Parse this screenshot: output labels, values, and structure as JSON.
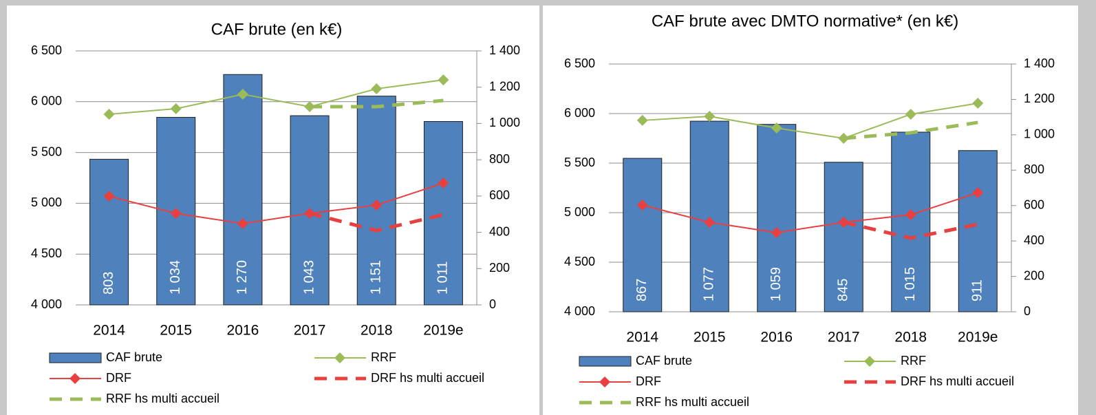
{
  "chart_data": [
    {
      "type": "combo",
      "title": "CAF brute (en k€)",
      "categories": [
        "2014",
        "2015",
        "2016",
        "2017",
        "2018",
        "2019e"
      ],
      "ylim": [
        4000,
        6500
      ],
      "yticks": [
        {
          "value": 4000,
          "label": "4 000"
        },
        {
          "value": 4500,
          "label": "4 500"
        },
        {
          "value": 5000,
          "label": "5 000"
        },
        {
          "value": 5500,
          "label": "5 500"
        },
        {
          "value": 6000,
          "label": "6 000"
        },
        {
          "value": 6500,
          "label": "6 500"
        }
      ],
      "y2lim": [
        0,
        1400
      ],
      "y2ticks": [
        0,
        200,
        400,
        600,
        800,
        {
          "value": 1000,
          "label": "1 000"
        },
        {
          "value": 1200,
          "label": "1 200"
        },
        {
          "value": 1400,
          "label": "1 400"
        }
      ],
      "grid": true,
      "series": [
        {
          "name": "CAF brute",
          "type": "bar",
          "axis": "y2",
          "color": "#4f81bd",
          "values": [
            803,
            1034,
            1270,
            1043,
            1151,
            1011
          ],
          "value_labels": [
            "803",
            "1 034",
            "1 270",
            "1 043",
            "1 151",
            "1 011"
          ]
        },
        {
          "name": "RRF",
          "type": "line",
          "color": "#9bbb59",
          "marker": "diamond",
          "values": [
            5877,
            5931,
            6073,
            5951,
            6127,
            6215
          ]
        },
        {
          "name": "DRF",
          "type": "line",
          "color": "#e84040",
          "marker": "diamond",
          "values": [
            5070,
            4901,
            4800,
            4901,
            4982,
            5199
          ]
        },
        {
          "name": "DRF hs multi accueil",
          "type": "line",
          "color": "#e84040",
          "dashed": true,
          "values": [
            null,
            null,
            null,
            4901,
            4732,
            4888
          ]
        },
        {
          "name": "RRF hs multi accueil",
          "type": "line",
          "color": "#9bbb59",
          "dashed": true,
          "values": [
            null,
            null,
            null,
            5951,
            5951,
            6012
          ]
        }
      ]
    },
    {
      "type": "combo",
      "title": "CAF brute avec DMTO normative* (en k€)",
      "categories": [
        "2014",
        "2015",
        "2016",
        "2017",
        "2018",
        "2019e"
      ],
      "ylim": [
        4000,
        6500
      ],
      "yticks": [
        {
          "value": 4000,
          "label": "4 000"
        },
        {
          "value": 4500,
          "label": "4 500"
        },
        {
          "value": 5000,
          "label": "5 000"
        },
        {
          "value": 5500,
          "label": "5 500"
        },
        {
          "value": 6000,
          "label": "6 000"
        },
        {
          "value": 6500,
          "label": "6 500"
        }
      ],
      "y2lim": [
        0,
        1400
      ],
      "y2ticks": [
        0,
        200,
        400,
        600,
        800,
        {
          "value": 1000,
          "label": "1 000"
        },
        {
          "value": 1200,
          "label": "1 200"
        },
        {
          "value": 1400,
          "label": "1 400"
        }
      ],
      "grid": true,
      "series": [
        {
          "name": "CAF brute",
          "type": "bar",
          "axis": "y2",
          "color": "#4f81bd",
          "values": [
            867,
            1077,
            1059,
            845,
            1015,
            911
          ],
          "value_labels": [
            "867",
            "1 077",
            "1 059",
            "845",
            "1 015",
            "911"
          ]
        },
        {
          "name": "RRF",
          "type": "line",
          "color": "#9bbb59",
          "marker": "diamond",
          "values": [
            5931,
            5972,
            5854,
            5750,
            5993,
            6104
          ]
        },
        {
          "name": "DRF",
          "type": "line",
          "color": "#e84040",
          "marker": "diamond",
          "values": [
            5076,
            4903,
            4799,
            4903,
            4979,
            5201
          ]
        },
        {
          "name": "DRF hs multi accueil",
          "type": "line",
          "color": "#e84040",
          "dashed": true,
          "values": [
            null,
            null,
            null,
            4903,
            4743,
            4882
          ]
        },
        {
          "name": "RRF hs multi accueil",
          "type": "line",
          "color": "#9bbb59",
          "dashed": true,
          "values": [
            null,
            null,
            null,
            5750,
            5806,
            5910
          ]
        }
      ]
    }
  ]
}
